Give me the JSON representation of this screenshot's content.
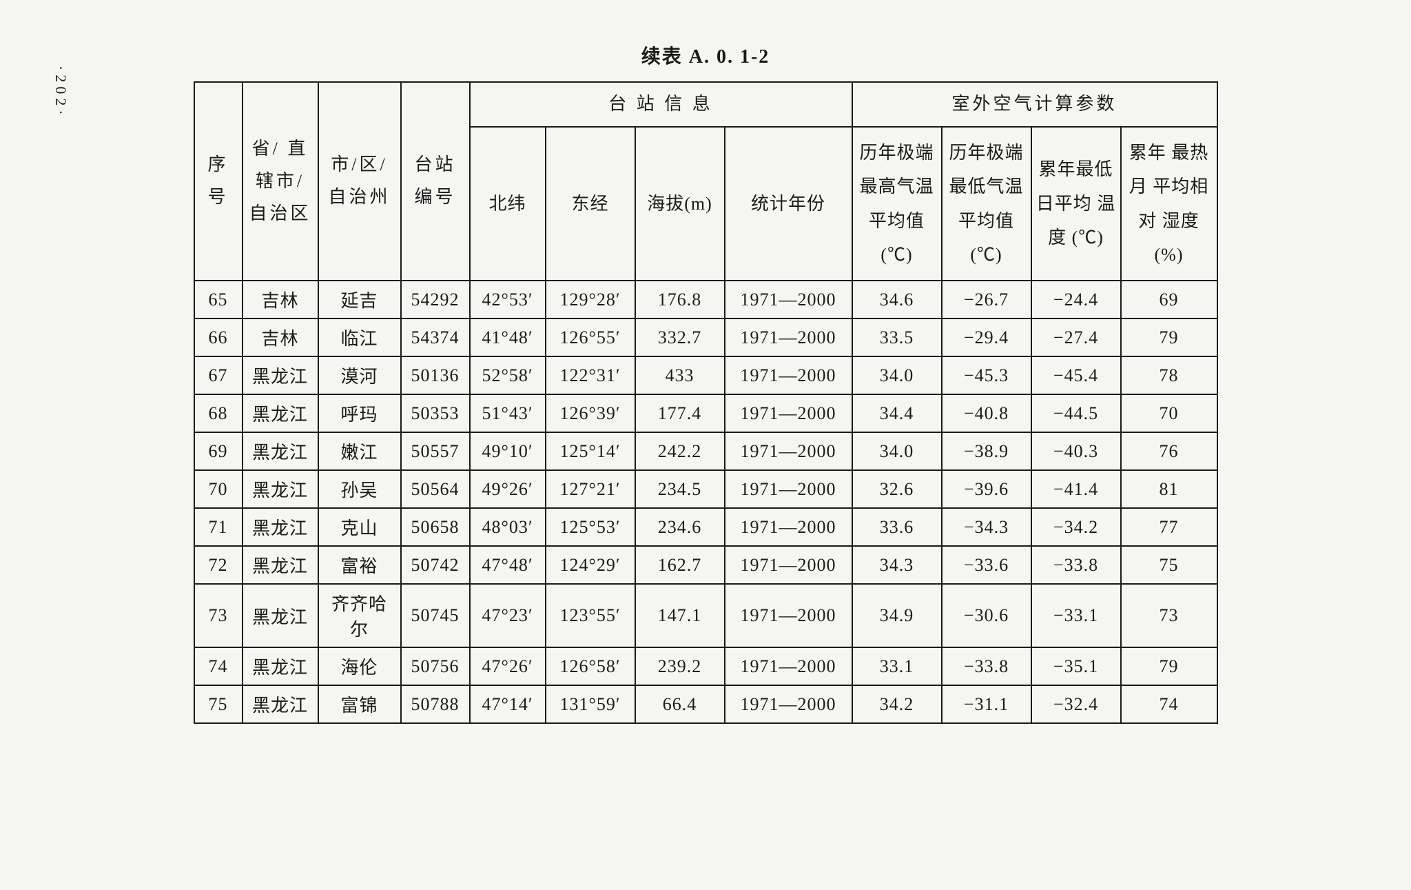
{
  "page_number": "·202·",
  "title": "续表 A. 0. 1-2",
  "table": {
    "header_groups": {
      "station_info": "台 站 信 息",
      "air_params": "室外空气计算参数"
    },
    "columns": {
      "seq": "序号",
      "province": "省/\n直辖市/\n自治区",
      "city": "市/区/\n自治州",
      "station": "台站\n编号",
      "latitude": "北纬",
      "longitude": "东经",
      "altitude": "海拔(m)",
      "years": "统计年份",
      "max_temp": "历年极端\n最高气温\n平均值\n(℃)",
      "min_temp": "历年极端\n最低气温\n平均值\n(℃)",
      "daily_min": "累年最低\n日平均\n温度\n(℃)",
      "humidity": "累年\n最热月\n平均相对\n湿度(%)"
    },
    "rows": [
      {
        "seq": "65",
        "province": "吉林",
        "city": "延吉",
        "station": "54292",
        "lat": "42°53′",
        "lon": "129°28′",
        "alt": "176.8",
        "years": "1971—2000",
        "max": "34.6",
        "min": "−26.7",
        "daily": "−24.4",
        "humid": "69"
      },
      {
        "seq": "66",
        "province": "吉林",
        "city": "临江",
        "station": "54374",
        "lat": "41°48′",
        "lon": "126°55′",
        "alt": "332.7",
        "years": "1971—2000",
        "max": "33.5",
        "min": "−29.4",
        "daily": "−27.4",
        "humid": "79"
      },
      {
        "seq": "67",
        "province": "黑龙江",
        "city": "漠河",
        "station": "50136",
        "lat": "52°58′",
        "lon": "122°31′",
        "alt": "433",
        "years": "1971—2000",
        "max": "34.0",
        "min": "−45.3",
        "daily": "−45.4",
        "humid": "78"
      },
      {
        "seq": "68",
        "province": "黑龙江",
        "city": "呼玛",
        "station": "50353",
        "lat": "51°43′",
        "lon": "126°39′",
        "alt": "177.4",
        "years": "1971—2000",
        "max": "34.4",
        "min": "−40.8",
        "daily": "−44.5",
        "humid": "70"
      },
      {
        "seq": "69",
        "province": "黑龙江",
        "city": "嫩江",
        "station": "50557",
        "lat": "49°10′",
        "lon": "125°14′",
        "alt": "242.2",
        "years": "1971—2000",
        "max": "34.0",
        "min": "−38.9",
        "daily": "−40.3",
        "humid": "76"
      },
      {
        "seq": "70",
        "province": "黑龙江",
        "city": "孙吴",
        "station": "50564",
        "lat": "49°26′",
        "lon": "127°21′",
        "alt": "234.5",
        "years": "1971—2000",
        "max": "32.6",
        "min": "−39.6",
        "daily": "−41.4",
        "humid": "81"
      },
      {
        "seq": "71",
        "province": "黑龙江",
        "city": "克山",
        "station": "50658",
        "lat": "48°03′",
        "lon": "125°53′",
        "alt": "234.6",
        "years": "1971—2000",
        "max": "33.6",
        "min": "−34.3",
        "daily": "−34.2",
        "humid": "77"
      },
      {
        "seq": "72",
        "province": "黑龙江",
        "city": "富裕",
        "station": "50742",
        "lat": "47°48′",
        "lon": "124°29′",
        "alt": "162.7",
        "years": "1971—2000",
        "max": "34.3",
        "min": "−33.6",
        "daily": "−33.8",
        "humid": "75"
      },
      {
        "seq": "73",
        "province": "黑龙江",
        "city": "齐齐哈尔",
        "station": "50745",
        "lat": "47°23′",
        "lon": "123°55′",
        "alt": "147.1",
        "years": "1971—2000",
        "max": "34.9",
        "min": "−30.6",
        "daily": "−33.1",
        "humid": "73"
      },
      {
        "seq": "74",
        "province": "黑龙江",
        "city": "海伦",
        "station": "50756",
        "lat": "47°26′",
        "lon": "126°58′",
        "alt": "239.2",
        "years": "1971—2000",
        "max": "33.1",
        "min": "−33.8",
        "daily": "−35.1",
        "humid": "79"
      },
      {
        "seq": "75",
        "province": "黑龙江",
        "city": "富锦",
        "station": "50788",
        "lat": "47°14′",
        "lon": "131°59′",
        "alt": "66.4",
        "years": "1971—2000",
        "max": "34.2",
        "min": "−31.1",
        "daily": "−32.4",
        "humid": "74"
      }
    ]
  },
  "styling": {
    "background_color": "#f5f5f2",
    "border_color": "#1a1a1a",
    "text_color": "#1a1a1a",
    "font_family": "SimSun",
    "title_fontsize": 28,
    "body_fontsize": 26
  }
}
